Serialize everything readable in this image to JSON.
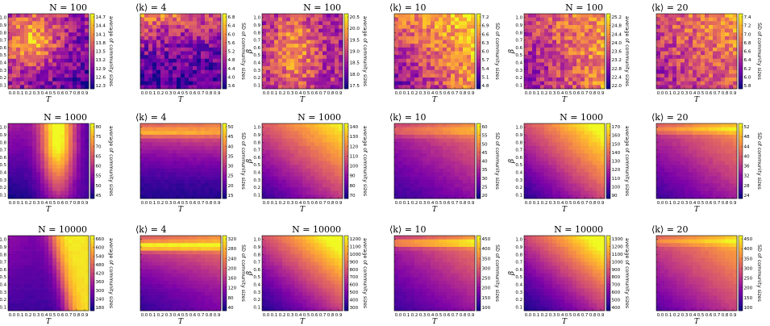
{
  "chart_data": {
    "type": "heatmap",
    "colormap": "plasma",
    "x_label": "T",
    "y_label": "β",
    "x_ticks": [
      "0.0",
      "0.1",
      "0.2",
      "0.3",
      "0.4",
      "0.5",
      "0.6",
      "0.7",
      "0.8",
      "0.9"
    ],
    "y_ticks": [
      "0.1",
      "0.2",
      "0.3",
      "0.4",
      "0.5",
      "0.6",
      "0.7",
      "0.8",
      "0.9",
      "1.0"
    ],
    "mean_colorbar_label": "average of community sizes",
    "sd_colorbar_label": "SD of community sizes",
    "groups": [
      {
        "n_title": "N = 100",
        "k_title": "⟨k⟩ = 4",
        "row": 0,
        "col": 0,
        "mean_ticks": [
          "12.3",
          "12.6",
          "12.9",
          "13.2",
          "13.5",
          "13.8",
          "14.1",
          "14.4",
          "14.7"
        ],
        "sd_ticks": [
          "3.6",
          "4.0",
          "4.4",
          "4.8",
          "5.2",
          "5.6",
          "6.0",
          "6.4",
          "6.8"
        ]
      },
      {
        "n_title": "N = 100",
        "k_title": "⟨k⟩ = 10",
        "row": 0,
        "col": 1,
        "mean_ticks": [
          "17.5",
          "18.0",
          "18.5",
          "19.0",
          "19.5",
          "20.0",
          "20.5"
        ],
        "sd_ticks": [
          "4.8",
          "5.1",
          "5.4",
          "5.7",
          "6.0",
          "6.3",
          "6.6",
          "6.9",
          "7.2"
        ]
      },
      {
        "n_title": "N = 100",
        "k_title": "⟨k⟩ = 20",
        "row": 0,
        "col": 2,
        "mean_ticks": [
          "22.0",
          "22.4",
          "22.8",
          "23.2",
          "23.6",
          "24.0",
          "24.4",
          "24.8",
          "25.2"
        ],
        "sd_ticks": [
          "5.8",
          "6.0",
          "6.2",
          "6.4",
          "6.6",
          "6.8",
          "7.0",
          "7.2",
          "7.4"
        ]
      },
      {
        "n_title": "N = 1000",
        "k_title": "⟨k⟩ = 4",
        "row": 1,
        "col": 0,
        "mean_ticks": [
          "45",
          "50",
          "55",
          "60",
          "65",
          "70",
          "75",
          "80"
        ],
        "sd_ticks": [
          "15",
          "20",
          "25",
          "30",
          "35",
          "40",
          "45",
          "50"
        ]
      },
      {
        "n_title": "N = 1000",
        "k_title": "⟨k⟩ = 10",
        "row": 1,
        "col": 1,
        "mean_ticks": [
          "70",
          "80",
          "90",
          "100",
          "110",
          "120",
          "130",
          "140"
        ],
        "sd_ticks": [
          "20",
          "25",
          "30",
          "35",
          "40",
          "45",
          "50",
          "55",
          "60"
        ]
      },
      {
        "n_title": "N = 1000",
        "k_title": "⟨k⟩ = 20",
        "row": 1,
        "col": 2,
        "mean_ticks": [
          "90",
          "100",
          "110",
          "120",
          "130",
          "140",
          "150",
          "160",
          "170"
        ],
        "sd_ticks": [
          "24",
          "28",
          "32",
          "36",
          "40",
          "44",
          "48",
          "52"
        ]
      },
      {
        "n_title": "N = 10000",
        "k_title": "⟨k⟩ = 4",
        "row": 2,
        "col": 0,
        "mean_ticks": [
          "180",
          "240",
          "300",
          "360",
          "420",
          "480",
          "540",
          "600",
          "660"
        ],
        "sd_ticks": [
          "40",
          "80",
          "120",
          "160",
          "200",
          "240",
          "280",
          "320"
        ]
      },
      {
        "n_title": "N = 10000",
        "k_title": "⟨k⟩ = 10",
        "row": 2,
        "col": 1,
        "mean_ticks": [
          "300",
          "400",
          "500",
          "600",
          "700",
          "800",
          "900",
          "1000",
          "1100",
          "1200"
        ],
        "sd_ticks": [
          "100",
          "150",
          "200",
          "250",
          "300",
          "350",
          "400",
          "450"
        ]
      },
      {
        "n_title": "N = 10000",
        "k_title": "⟨k⟩ = 20",
        "row": 2,
        "col": 2,
        "mean_ticks": [
          "400",
          "500",
          "600",
          "700",
          "800",
          "900",
          "1000",
          "1100",
          "1200",
          "1300"
        ],
        "sd_ticks": [
          "100",
          "150",
          "200",
          "250",
          "300",
          "350",
          "400",
          "450"
        ]
      }
    ],
    "description_of_fields": "Each group: left heatmap = average community size over (T, beta); right heatmap = SD of community sizes. Values are qualitative; colour scale is plasma."
  }
}
